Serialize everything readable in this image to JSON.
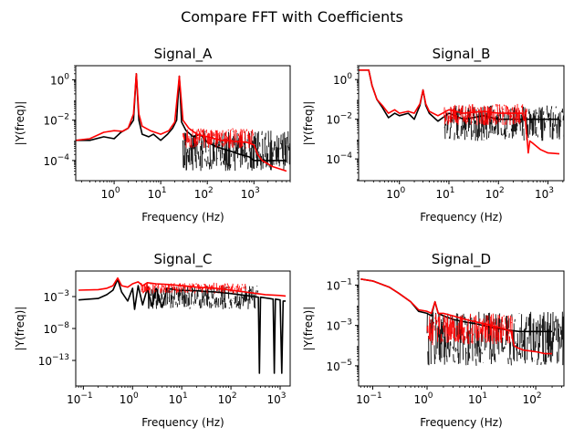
{
  "figure_title": "Compare FFT with Coefficients",
  "chart_data": [
    {
      "type": "line",
      "title": "Signal_A",
      "xlabel": "Frequency (Hz)",
      "ylabel": "|Y(freq)|",
      "xscale": "log",
      "yscale": "log",
      "xlim": [
        0.15,
        6000
      ],
      "ylim": [
        1e-05,
        5
      ],
      "x_ticks": [
        {
          "v": 1,
          "t": "10",
          "e": "0"
        },
        {
          "v": 10,
          "t": "10",
          "e": "1"
        },
        {
          "v": 100,
          "t": "10",
          "e": "2"
        },
        {
          "v": 1000,
          "t": "10",
          "e": "3"
        }
      ],
      "y_ticks": [
        {
          "v": 1,
          "t": "10",
          "e": "0"
        },
        {
          "v": 0.01,
          "t": "10",
          "e": "−2"
        },
        {
          "v": 0.0001,
          "t": "10",
          "e": "−4"
        }
      ],
      "series": [
        {
          "color": "#000000",
          "points": [
            [
              0.15,
              0.001
            ],
            [
              0.3,
              0.001
            ],
            [
              0.6,
              0.0015
            ],
            [
              1.0,
              0.0012
            ],
            [
              1.4,
              0.0025
            ],
            [
              2.0,
              0.004
            ],
            [
              2.6,
              0.01
            ],
            [
              3.0,
              2.0
            ],
            [
              3.4,
              0.01
            ],
            [
              4.0,
              0.002
            ],
            [
              5.5,
              0.0015
            ],
            [
              7.0,
              0.002
            ],
            [
              10,
              0.001
            ],
            [
              14,
              0.002
            ],
            [
              18,
              0.004
            ],
            [
              22,
              0.01
            ],
            [
              25,
              1.5
            ],
            [
              28,
              0.008
            ],
            [
              35,
              0.003
            ],
            [
              50,
              0.0015
            ],
            [
              70,
              0.002
            ],
            [
              100,
              0.0008
            ],
            [
              150,
              0.0005
            ],
            [
              200,
              0.0004
            ],
            [
              300,
              0.0003
            ],
            [
              500,
              0.0002
            ],
            [
              800,
              0.00015
            ],
            [
              1000,
              0.0001
            ],
            [
              1500,
              0.0001
            ],
            [
              2500,
              0.0001
            ],
            [
              5000,
              0.0001
            ]
          ],
          "noise": {
            "from": 30,
            "lo": 3e-05,
            "hi": 0.003
          }
        },
        {
          "color": "#ff0000",
          "points": [
            [
              0.15,
              0.001
            ],
            [
              0.3,
              0.0012
            ],
            [
              0.6,
              0.0025
            ],
            [
              1.0,
              0.003
            ],
            [
              1.5,
              0.0028
            ],
            [
              2.0,
              0.004
            ],
            [
              2.6,
              0.02
            ],
            [
              3.0,
              2.0
            ],
            [
              3.4,
              0.02
            ],
            [
              4.0,
              0.005
            ],
            [
              6.0,
              0.003
            ],
            [
              10,
              0.002
            ],
            [
              15,
              0.003
            ],
            [
              20,
              0.008
            ],
            [
              25,
              1.5
            ],
            [
              30,
              0.01
            ],
            [
              40,
              0.004
            ],
            [
              60,
              0.002
            ],
            [
              100,
              0.0015
            ],
            [
              200,
              0.001
            ],
            [
              400,
              0.0009
            ],
            [
              700,
              0.0008
            ],
            [
              1000,
              0.0006
            ],
            [
              1200,
              0.0002
            ],
            [
              1500,
              0.0001
            ],
            [
              2500,
              5e-05
            ],
            [
              5000,
              3e-05
            ]
          ],
          "noise": {
            "from": 30,
            "to": 1000,
            "lo": 0.0004,
            "hi": 0.004
          }
        }
      ]
    },
    {
      "type": "line",
      "title": "Signal_B",
      "xlabel": "Frequency (Hz)",
      "ylabel": "|Y(freq)|",
      "xscale": "log",
      "yscale": "log",
      "xlim": [
        0.15,
        2100
      ],
      "ylim": [
        8e-06,
        5
      ],
      "x_ticks": [
        {
          "v": 1,
          "t": "10",
          "e": "0"
        },
        {
          "v": 10,
          "t": "10",
          "e": "1"
        },
        {
          "v": 100,
          "t": "10",
          "e": "2"
        },
        {
          "v": 1000,
          "t": "10",
          "e": "3"
        }
      ],
      "y_ticks": [
        {
          "v": 1,
          "t": "10",
          "e": "0"
        },
        {
          "v": 0.01,
          "t": "10",
          "e": "−2"
        },
        {
          "v": 0.0001,
          "t": "10",
          "e": "−4"
        }
      ],
      "series": [
        {
          "color": "#000000",
          "points": [
            [
              0.15,
              3
            ],
            [
              0.24,
              3
            ],
            [
              0.28,
              0.5
            ],
            [
              0.35,
              0.1
            ],
            [
              0.45,
              0.04
            ],
            [
              0.6,
              0.012
            ],
            [
              0.8,
              0.02
            ],
            [
              1.0,
              0.015
            ],
            [
              1.5,
              0.02
            ],
            [
              2.0,
              0.01
            ],
            [
              2.6,
              0.05
            ],
            [
              3.0,
              0.3
            ],
            [
              3.4,
              0.05
            ],
            [
              4.0,
              0.02
            ],
            [
              6.0,
              0.008
            ],
            [
              10,
              0.02
            ],
            [
              20,
              0.01
            ],
            [
              50,
              0.015
            ],
            [
              100,
              0.01
            ],
            [
              300,
              0.01
            ],
            [
              1000,
              0.01
            ],
            [
              1700,
              0.01
            ]
          ],
          "noise": {
            "from": 8,
            "lo": 0.0008,
            "hi": 0.05
          }
        },
        {
          "color": "#ff0000",
          "points": [
            [
              0.15,
              3
            ],
            [
              0.24,
              3
            ],
            [
              0.28,
              0.5
            ],
            [
              0.35,
              0.1
            ],
            [
              0.45,
              0.05
            ],
            [
              0.6,
              0.02
            ],
            [
              0.8,
              0.03
            ],
            [
              1.0,
              0.02
            ],
            [
              1.5,
              0.025
            ],
            [
              2.0,
              0.02
            ],
            [
              2.6,
              0.06
            ],
            [
              3.0,
              0.3
            ],
            [
              3.4,
              0.06
            ],
            [
              4.0,
              0.025
            ],
            [
              6.0,
              0.015
            ],
            [
              10,
              0.03
            ],
            [
              20,
              0.02
            ],
            [
              50,
              0.025
            ],
            [
              100,
              0.02
            ],
            [
              200,
              0.02
            ],
            [
              300,
              0.02
            ],
            [
              350,
              0.008
            ],
            [
              380,
              0.001
            ],
            [
              400,
              0.0002
            ],
            [
              430,
              0.0008
            ],
            [
              500,
              0.0006
            ],
            [
              700,
              0.0003
            ],
            [
              1000,
              0.0002
            ],
            [
              1700,
              0.00018
            ]
          ],
          "noise": {
            "from": 8,
            "to": 380,
            "lo": 0.005,
            "hi": 0.06
          }
        }
      ]
    },
    {
      "type": "line",
      "title": "Signal_C",
      "xlabel": "Frequency (Hz)",
      "ylabel": "|Y(freq)|",
      "xscale": "log",
      "yscale": "log",
      "xlim": [
        0.07,
        1600
      ],
      "ylim": [
        1e-17,
        10
      ],
      "x_ticks": [
        {
          "v": 0.1,
          "t": "10",
          "e": "−1"
        },
        {
          "v": 1,
          "t": "10",
          "e": "0"
        },
        {
          "v": 10,
          "t": "10",
          "e": "1"
        },
        {
          "v": 100,
          "t": "10",
          "e": "2"
        },
        {
          "v": 1000,
          "t": "10",
          "e": "3"
        }
      ],
      "y_ticks": [
        {
          "v": 0.001,
          "t": "10",
          "e": "−3"
        },
        {
          "v": 1e-08,
          "t": "10",
          "e": "−8"
        },
        {
          "v": 1e-13,
          "t": "10",
          "e": "−13"
        }
      ],
      "series": [
        {
          "color": "#000000",
          "points": [
            [
              0.08,
              0.0003
            ],
            [
              0.2,
              0.0005
            ],
            [
              0.3,
              0.002
            ],
            [
              0.4,
              0.01
            ],
            [
              0.5,
              0.5
            ],
            [
              0.6,
              0.005
            ],
            [
              0.8,
              0.0002
            ],
            [
              1.0,
              0.02
            ],
            [
              1.1,
              1e-05
            ],
            [
              1.3,
              0.05
            ],
            [
              1.6,
              5e-05
            ],
            [
              2.0,
              0.02
            ],
            [
              2.5,
              3e-05
            ],
            [
              3.0,
              0.02
            ],
            [
              4.0,
              2e-05
            ],
            [
              5.0,
              0.02
            ],
            [
              8.0,
              0.01
            ],
            [
              20,
              0.008
            ],
            [
              50,
              0.005
            ],
            [
              100,
              0.003
            ],
            [
              200,
              0.0015
            ],
            [
              300,
              0.001
            ],
            [
              360,
              0.0008
            ],
            [
              380,
              1e-15
            ],
            [
              400,
              0.0008
            ],
            [
              600,
              0.0005
            ],
            [
              720,
              0.0004
            ],
            [
              760,
              1e-15
            ],
            [
              800,
              0.0004
            ],
            [
              1000,
              0.0003
            ],
            [
              1080,
              1e-15
            ],
            [
              1150,
              0.0002
            ],
            [
              1300,
              0.0002
            ]
          ],
          "noise": {
            "from": 2,
            "to": 360,
            "lo": 1e-05,
            "hi": 0.05
          }
        },
        {
          "color": "#ff0000",
          "points": [
            [
              0.08,
              0.01
            ],
            [
              0.2,
              0.012
            ],
            [
              0.3,
              0.02
            ],
            [
              0.4,
              0.05
            ],
            [
              0.5,
              0.8
            ],
            [
              0.6,
              0.05
            ],
            [
              0.8,
              0.03
            ],
            [
              1.0,
              0.1
            ],
            [
              1.3,
              0.2
            ],
            [
              1.6,
              0.05
            ],
            [
              2.0,
              0.15
            ],
            [
              3.0,
              0.1
            ],
            [
              5.0,
              0.08
            ],
            [
              10,
              0.05
            ],
            [
              20,
              0.03
            ],
            [
              50,
              0.02
            ],
            [
              100,
              0.01
            ],
            [
              200,
              0.005
            ],
            [
              500,
              0.002
            ],
            [
              1000,
              0.0015
            ],
            [
              1300,
              0.0012
            ]
          ],
          "noise": {
            "from": 1.5,
            "to": 200,
            "lo": 0.003,
            "hi": 0.15
          }
        }
      ]
    },
    {
      "type": "line",
      "title": "Signal_D",
      "xlabel": "Frequency (Hz)",
      "ylabel": "|Y(freq)|",
      "xscale": "log",
      "yscale": "log",
      "xlim": [
        0.055,
        330
      ],
      "ylim": [
        1e-06,
        0.5
      ],
      "x_ticks": [
        {
          "v": 0.1,
          "t": "10",
          "e": "−1"
        },
        {
          "v": 1,
          "t": "10",
          "e": "0"
        },
        {
          "v": 10,
          "t": "10",
          "e": "1"
        },
        {
          "v": 100,
          "t": "10",
          "e": "2"
        }
      ],
      "y_ticks": [
        {
          "v": 0.1,
          "t": "10",
          "e": "−1"
        },
        {
          "v": 0.001,
          "t": "10",
          "e": "−3"
        },
        {
          "v": 1e-05,
          "t": "10",
          "e": "−5"
        }
      ],
      "series": [
        {
          "color": "#000000",
          "points": [
            [
              0.06,
              0.2
            ],
            [
              0.1,
              0.16
            ],
            [
              0.2,
              0.08
            ],
            [
              0.3,
              0.04
            ],
            [
              0.5,
              0.015
            ],
            [
              0.7,
              0.005
            ],
            [
              1.0,
              0.004
            ],
            [
              1.2,
              0.003
            ],
            [
              1.4,
              0.015
            ],
            [
              1.6,
              0.004
            ],
            [
              2.0,
              0.003
            ],
            [
              3.0,
              0.002
            ],
            [
              5.0,
              0.0015
            ],
            [
              8.0,
              0.0012
            ],
            [
              15,
              0.0008
            ],
            [
              30,
              0.0006
            ],
            [
              50,
              0.0005
            ],
            [
              100,
              0.0005
            ],
            [
              200,
              0.0005
            ]
          ],
          "noise": {
            "from": 1,
            "lo": 1e-05,
            "hi": 0.005
          }
        },
        {
          "color": "#ff0000",
          "points": [
            [
              0.06,
              0.2
            ],
            [
              0.1,
              0.16
            ],
            [
              0.2,
              0.08
            ],
            [
              0.3,
              0.04
            ],
            [
              0.5,
              0.015
            ],
            [
              0.7,
              0.006
            ],
            [
              1.0,
              0.005
            ],
            [
              1.2,
              0.004
            ],
            [
              1.4,
              0.015
            ],
            [
              1.6,
              0.004
            ],
            [
              2.0,
              0.004
            ],
            [
              3.0,
              0.003
            ],
            [
              5.0,
              0.002
            ],
            [
              8.0,
              0.0015
            ],
            [
              15,
              0.001
            ],
            [
              25,
              0.0007
            ],
            [
              35,
              0.0005
            ],
            [
              40,
              0.0001
            ],
            [
              45,
              8e-05
            ],
            [
              60,
              6e-05
            ],
            [
              100,
              5e-05
            ],
            [
              150,
              4e-05
            ],
            [
              200,
              4e-05
            ]
          ],
          "noise": {
            "from": 1,
            "to": 38,
            "lo": 0.0001,
            "hi": 0.004
          }
        }
      ]
    }
  ]
}
